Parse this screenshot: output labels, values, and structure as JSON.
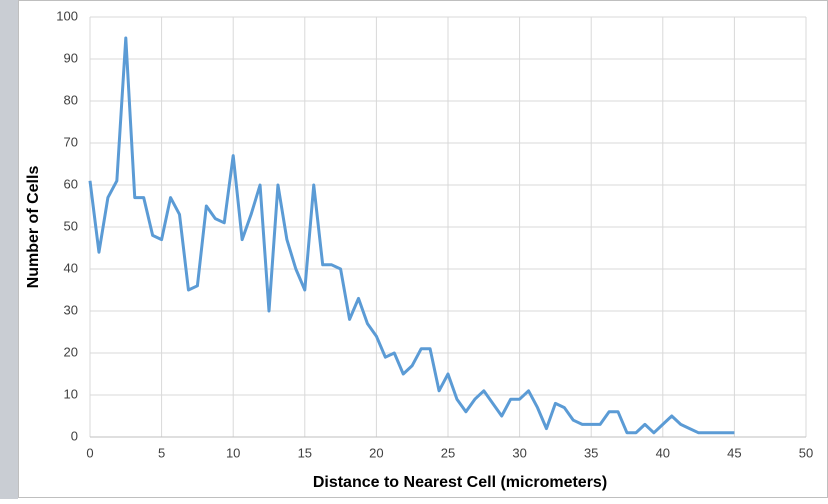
{
  "chart_data": {
    "type": "line",
    "x_label": "Distance to Nearest Cell (micrometers)",
    "y_label": "Number of Cells",
    "x": [
      0,
      0.625,
      1.25,
      1.875,
      2.5,
      3.125,
      3.75,
      4.375,
      5,
      5.625,
      6.25,
      6.875,
      7.5,
      8.125,
      8.75,
      9.375,
      10,
      10.625,
      11.25,
      11.875,
      12.5,
      13.125,
      13.75,
      14.375,
      15,
      15.625,
      16.25,
      16.875,
      17.5,
      18.125,
      18.75,
      19.375,
      20,
      20.625,
      21.25,
      21.875,
      22.5,
      23.125,
      23.75,
      24.375,
      25,
      25.625,
      26.25,
      26.875,
      27.5,
      28.125,
      28.75,
      29.375,
      30,
      30.625,
      31.25,
      31.875,
      32.5,
      33.125,
      33.75,
      34.375,
      35,
      35.625,
      36.25,
      36.875,
      37.5,
      38.125,
      38.75,
      39.375,
      40,
      40.625,
      41.25,
      41.875,
      42.5,
      43.125,
      43.75,
      44.375,
      45
    ],
    "series": [
      {
        "color": "#5b9bd5",
        "values": [
          61,
          44,
          57,
          61,
          95,
          57,
          57,
          48,
          47,
          57,
          53,
          35,
          36,
          55,
          52,
          51,
          67,
          47,
          53,
          60,
          30,
          60,
          47,
          40,
          35,
          60,
          41,
          41,
          40,
          28,
          33,
          27,
          24,
          19,
          20,
          15,
          17,
          21,
          21,
          11,
          15,
          9,
          6,
          9,
          11,
          8,
          5,
          9,
          9,
          11,
          7,
          2,
          8,
          7,
          4,
          3,
          3,
          3,
          6,
          6,
          1,
          1,
          3,
          1,
          3,
          5,
          3,
          2,
          1,
          1,
          1,
          1,
          1
        ]
      }
    ],
    "xlim": [
      0,
      50
    ],
    "xticks": [
      0,
      5,
      10,
      15,
      20,
      25,
      30,
      35,
      40,
      45,
      50
    ],
    "ylim": [
      0,
      100
    ],
    "yticks": [
      0,
      10,
      20,
      30,
      40,
      50,
      60,
      70,
      80,
      90,
      100
    ],
    "grid": true
  }
}
